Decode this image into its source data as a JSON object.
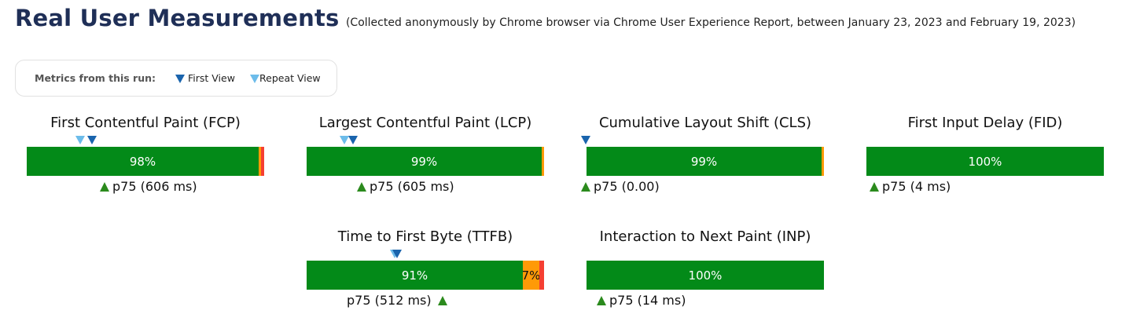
{
  "title": "Real User Measurements",
  "subtitle": "(Collected anonymously by Chrome browser via Chrome User Experience Report, between January 23, 2023 and February 19, 2023)",
  "legend": {
    "label": "Metrics from this run:",
    "first_view": "First View",
    "repeat_view": "Repeat View",
    "first_view_color": "#1a64ad",
    "repeat_view_color": "#6cbcea"
  },
  "colors": {
    "good": "#038a18",
    "needs_improvement": "#ff9a07",
    "poor": "#f53f32",
    "heading": "#1f2f57"
  },
  "metrics": [
    {
      "name": "First Contentful Paint (FCP)",
      "good": 98,
      "ni": 1,
      "poor": 1,
      "good_label": "98%",
      "ni_label": "",
      "poor_label": "",
      "p75": "p75 (606 ms)",
      "first_view": true,
      "repeat_view": true
    },
    {
      "name": "Largest Contentful Paint (LCP)",
      "good": 99,
      "ni": 1,
      "poor": 0,
      "good_label": "99%",
      "ni_label": "",
      "poor_label": "",
      "p75": "p75 (605 ms)",
      "first_view": true,
      "repeat_view": true
    },
    {
      "name": "Cumulative Layout Shift (CLS)",
      "good": 99,
      "ni": 1,
      "poor": 0,
      "good_label": "99%",
      "ni_label": "",
      "poor_label": "",
      "p75": "p75 (0.00)",
      "first_view": true,
      "repeat_view": false
    },
    {
      "name": "First Input Delay (FID)",
      "good": 100,
      "ni": 0,
      "poor": 0,
      "good_label": "100%",
      "ni_label": "",
      "poor_label": "",
      "p75": "p75 (4 ms)",
      "first_view": false,
      "repeat_view": false
    },
    {
      "name": "Time to First Byte (TTFB)",
      "good": 91,
      "ni": 7,
      "poor": 2,
      "good_label": "91%",
      "ni_label": "7%",
      "poor_label": "",
      "p75": "p75 (512 ms)",
      "first_view": true,
      "repeat_view": true
    },
    {
      "name": "Interaction to Next Paint (INP)",
      "good": 100,
      "ni": 0,
      "poor": 0,
      "good_label": "100%",
      "ni_label": "",
      "poor_label": "",
      "p75": "p75 (14 ms)",
      "first_view": false,
      "repeat_view": false
    }
  ]
}
